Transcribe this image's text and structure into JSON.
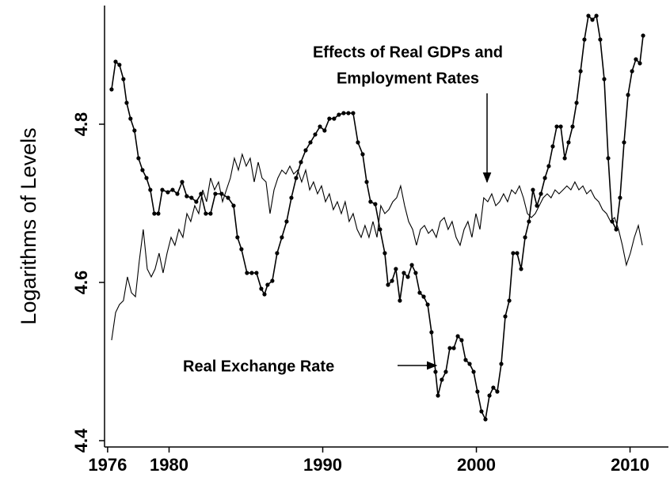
{
  "chart_data": {
    "type": "line",
    "y_label": "Logarithms of Levels",
    "xlim": [
      1975.8,
      2012.6
    ],
    "ylim": [
      4.392,
      4.95
    ],
    "xticks": [
      1976,
      1980,
      1990,
      2000,
      2010
    ],
    "yticks": [
      4.4,
      4.6,
      4.8
    ],
    "annotations": [
      {
        "lines": [
          "Effects of Real GDPs and",
          "Employment Rates"
        ]
      },
      {
        "lines": [
          "Real Exchange Rate"
        ]
      }
    ],
    "series": [
      {
        "color": "#000000",
        "markers": true,
        "x": [
          1976.26,
          1976.52,
          1976.77,
          1977.03,
          1977.24,
          1977.49,
          1977.75,
          1978.01,
          1978.27,
          1978.53,
          1978.78,
          1979.04,
          1979.3,
          1979.56,
          1979.92,
          1980.23,
          1980.54,
          1980.85,
          1981.15,
          1981.46,
          1981.77,
          1982.08,
          1982.39,
          1982.7,
          1983.01,
          1983.42,
          1983.84,
          1984.2,
          1984.45,
          1984.71,
          1985.07,
          1985.38,
          1985.69,
          1986.0,
          1986.21,
          1986.41,
          1986.72,
          1987.03,
          1987.34,
          1987.65,
          1987.96,
          1988.27,
          1988.58,
          1988.89,
          1989.2,
          1989.51,
          1989.82,
          1990.12,
          1990.43,
          1990.74,
          1991.05,
          1991.36,
          1991.67,
          1991.98,
          1992.29,
          1992.6,
          1992.86,
          1993.11,
          1993.42,
          1993.73,
          1994.04,
          1994.25,
          1994.51,
          1994.76,
          1995.02,
          1995.28,
          1995.54,
          1995.8,
          1996.05,
          1996.31,
          1996.57,
          1996.83,
          1997.08,
          1997.34,
          1997.5,
          1997.75,
          1998.01,
          1998.27,
          1998.53,
          1998.79,
          1999.04,
          1999.3,
          1999.56,
          1999.82,
          2000.07,
          2000.33,
          2000.59,
          2000.85,
          2001.1,
          2001.36,
          2001.62,
          2001.88,
          2002.14,
          2002.39,
          2002.65,
          2002.91,
          2003.17,
          2003.42,
          2003.68,
          2003.94,
          2004.2,
          2004.46,
          2004.71,
          2004.97,
          2005.23,
          2005.49,
          2005.75,
          2006.0,
          2006.26,
          2006.52,
          2006.78,
          2007.03,
          2007.29,
          2007.55,
          2007.81,
          2008.06,
          2008.32,
          2008.58,
          2008.84,
          2009.1,
          2009.35,
          2009.61,
          2009.87,
          2010.13,
          2010.38,
          2010.64,
          2010.85
        ],
        "values": [
          4.844,
          4.879,
          4.875,
          4.857,
          4.827,
          4.807,
          4.792,
          4.757,
          4.742,
          4.732,
          4.717,
          4.687,
          4.687,
          4.717,
          4.714,
          4.717,
          4.712,
          4.727,
          4.709,
          4.707,
          4.702,
          4.712,
          4.687,
          4.687,
          4.712,
          4.712,
          4.707,
          4.697,
          4.657,
          4.642,
          4.612,
          4.612,
          4.612,
          4.592,
          4.585,
          4.597,
          4.602,
          4.637,
          4.657,
          4.677,
          4.707,
          4.732,
          4.752,
          4.767,
          4.777,
          4.787,
          4.797,
          4.792,
          4.807,
          4.807,
          4.812,
          4.814,
          4.814,
          4.814,
          4.777,
          4.762,
          4.727,
          4.702,
          4.699,
          4.667,
          4.637,
          4.597,
          4.602,
          4.617,
          4.577,
          4.612,
          4.607,
          4.622,
          4.612,
          4.587,
          4.582,
          4.572,
          4.537,
          4.487,
          4.457,
          4.477,
          4.487,
          4.517,
          4.517,
          4.532,
          4.527,
          4.502,
          4.497,
          4.487,
          4.462,
          4.437,
          4.427,
          4.457,
          4.467,
          4.462,
          4.497,
          4.557,
          4.577,
          4.637,
          4.637,
          4.617,
          4.657,
          4.677,
          4.717,
          4.697,
          4.712,
          4.732,
          4.747,
          4.772,
          4.797,
          4.797,
          4.757,
          4.777,
          4.797,
          4.827,
          4.867,
          4.907,
          4.937,
          4.932,
          4.937,
          4.907,
          4.857,
          4.757,
          4.677,
          4.667,
          4.707,
          4.777,
          4.837,
          4.867,
          4.882,
          4.877,
          4.912
        ]
      },
      {
        "color": "#000000",
        "markers": false,
        "x": [
          1976.26,
          1976.52,
          1976.77,
          1977.03,
          1977.29,
          1977.55,
          1977.81,
          1978.06,
          1978.32,
          1978.58,
          1978.84,
          1979.09,
          1979.35,
          1979.61,
          1979.87,
          1980.13,
          1980.38,
          1980.64,
          1980.9,
          1981.16,
          1981.41,
          1981.67,
          1981.93,
          1982.19,
          1982.44,
          1982.7,
          1982.96,
          1983.22,
          1983.48,
          1983.73,
          1983.99,
          1984.25,
          1984.51,
          1984.76,
          1985.02,
          1985.28,
          1985.54,
          1985.8,
          1986.05,
          1986.31,
          1986.57,
          1986.83,
          1987.08,
          1987.34,
          1987.6,
          1987.86,
          1988.11,
          1988.37,
          1988.63,
          1988.89,
          1989.15,
          1989.4,
          1989.66,
          1989.92,
          1990.18,
          1990.43,
          1990.69,
          1990.95,
          1991.21,
          1991.46,
          1991.72,
          1991.98,
          1992.24,
          1992.5,
          1992.75,
          1993.01,
          1993.27,
          1993.53,
          1993.78,
          1994.04,
          1994.3,
          1994.56,
          1994.81,
          1995.07,
          1995.33,
          1995.59,
          1995.85,
          1996.1,
          1996.36,
          1996.62,
          1996.88,
          1997.13,
          1997.39,
          1997.65,
          1997.91,
          1998.16,
          1998.42,
          1998.68,
          1998.94,
          1999.2,
          1999.45,
          1999.71,
          1999.97,
          2000.23,
          2000.48,
          2000.74,
          2001.0,
          2001.26,
          2001.51,
          2001.77,
          2002.03,
          2002.29,
          2002.54,
          2002.8,
          2003.06,
          2003.32,
          2003.58,
          2003.83,
          2004.09,
          2004.35,
          2004.61,
          2004.86,
          2005.12,
          2005.38,
          2005.64,
          2005.89,
          2006.15,
          2006.41,
          2006.67,
          2006.93,
          2007.18,
          2007.44,
          2007.7,
          2007.96,
          2008.21,
          2008.47,
          2008.73,
          2008.99,
          2009.25,
          2009.5,
          2009.76,
          2010.02,
          2010.28,
          2010.54,
          2010.8
        ],
        "values": [
          4.527,
          4.562,
          4.572,
          4.577,
          4.607,
          4.587,
          4.582,
          4.627,
          4.667,
          4.617,
          4.607,
          4.617,
          4.637,
          4.612,
          4.637,
          4.657,
          4.647,
          4.667,
          4.657,
          4.687,
          4.677,
          4.697,
          4.687,
          4.717,
          4.702,
          4.732,
          4.717,
          4.727,
          4.702,
          4.717,
          4.732,
          4.757,
          4.742,
          4.762,
          4.747,
          4.757,
          4.727,
          4.752,
          4.732,
          4.727,
          4.687,
          4.717,
          4.732,
          4.742,
          4.737,
          4.747,
          4.737,
          4.742,
          4.727,
          4.742,
          4.717,
          4.727,
          4.712,
          4.722,
          4.702,
          4.712,
          4.692,
          4.702,
          4.687,
          4.702,
          4.677,
          4.687,
          4.667,
          4.657,
          4.672,
          4.657,
          4.677,
          4.657,
          4.697,
          4.687,
          4.692,
          4.702,
          4.707,
          4.722,
          4.697,
          4.677,
          4.667,
          4.647,
          4.667,
          4.672,
          4.662,
          4.667,
          4.657,
          4.677,
          4.682,
          4.667,
          4.677,
          4.657,
          4.647,
          4.667,
          4.677,
          4.657,
          4.687,
          4.667,
          4.707,
          4.702,
          4.712,
          4.697,
          4.702,
          4.712,
          4.702,
          4.717,
          4.712,
          4.722,
          4.707,
          4.687,
          4.682,
          4.687,
          4.697,
          4.707,
          4.712,
          4.707,
          4.717,
          4.712,
          4.717,
          4.722,
          4.717,
          4.727,
          4.717,
          4.722,
          4.712,
          4.717,
          4.707,
          4.702,
          4.692,
          4.687,
          4.677,
          4.682,
          4.667,
          4.647,
          4.622,
          4.637,
          4.657,
          4.672,
          4.647
        ]
      }
    ]
  }
}
